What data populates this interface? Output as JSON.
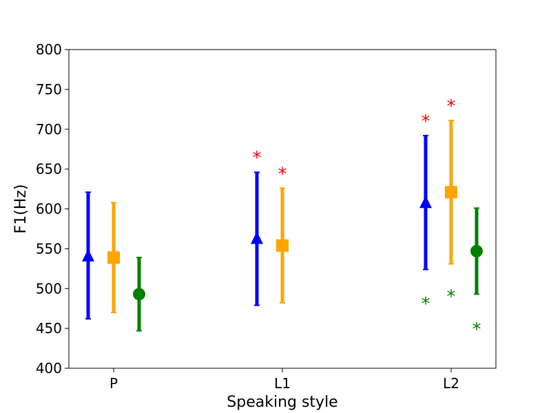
{
  "chart_data": {
    "type": "errorbar",
    "title": "",
    "xlabel": "Speaking style",
    "ylabel": "F1(Hz)",
    "categories": [
      "P",
      "L1",
      "L2"
    ],
    "ylim": [
      400,
      800
    ],
    "yticks": [
      400,
      450,
      500,
      550,
      600,
      650,
      700,
      750,
      800
    ],
    "grid": false,
    "series": [
      {
        "marker": "triangle",
        "color": "#0000ff",
        "points": [
          {
            "category": "P",
            "mean": 541,
            "low": 462,
            "high": 621
          },
          {
            "category": "L1",
            "mean": 563,
            "low": 479,
            "high": 646
          },
          {
            "category": "L2",
            "mean": 608,
            "low": 524,
            "high": 692
          }
        ]
      },
      {
        "marker": "square",
        "color": "#ffa500",
        "points": [
          {
            "category": "P",
            "mean": 539,
            "low": 470,
            "high": 608
          },
          {
            "category": "L1",
            "mean": 554,
            "low": 482,
            "high": 626
          },
          {
            "category": "L2",
            "mean": 621,
            "low": 531,
            "high": 711
          }
        ]
      },
      {
        "marker": "circle",
        "color": "#008000",
        "points": [
          {
            "category": "P",
            "mean": 493,
            "low": 447,
            "high": 539
          },
          {
            "category": "L1",
            "mean": null,
            "low": null,
            "high": null
          },
          {
            "category": "L2",
            "mean": 547,
            "low": 493,
            "high": 601
          }
        ]
      }
    ],
    "annotations": [
      {
        "text": "*",
        "category": "L1",
        "series": 0,
        "y": 672,
        "color": "#ff0000"
      },
      {
        "text": "*",
        "category": "L1",
        "series": 1,
        "y": 652,
        "color": "#ff0000"
      },
      {
        "text": "*",
        "category": "L2",
        "series": 0,
        "y": 718,
        "color": "#ff0000"
      },
      {
        "text": "*",
        "category": "L2",
        "series": 1,
        "y": 737,
        "color": "#ff0000"
      },
      {
        "text": "*",
        "category": "L2",
        "series": 0,
        "y": 489,
        "color": "#008000"
      },
      {
        "text": "*",
        "category": "L2",
        "series": 1,
        "y": 498,
        "color": "#008000"
      },
      {
        "text": "*",
        "category": "L2",
        "series": 2,
        "y": 457,
        "color": "#008000"
      }
    ]
  }
}
